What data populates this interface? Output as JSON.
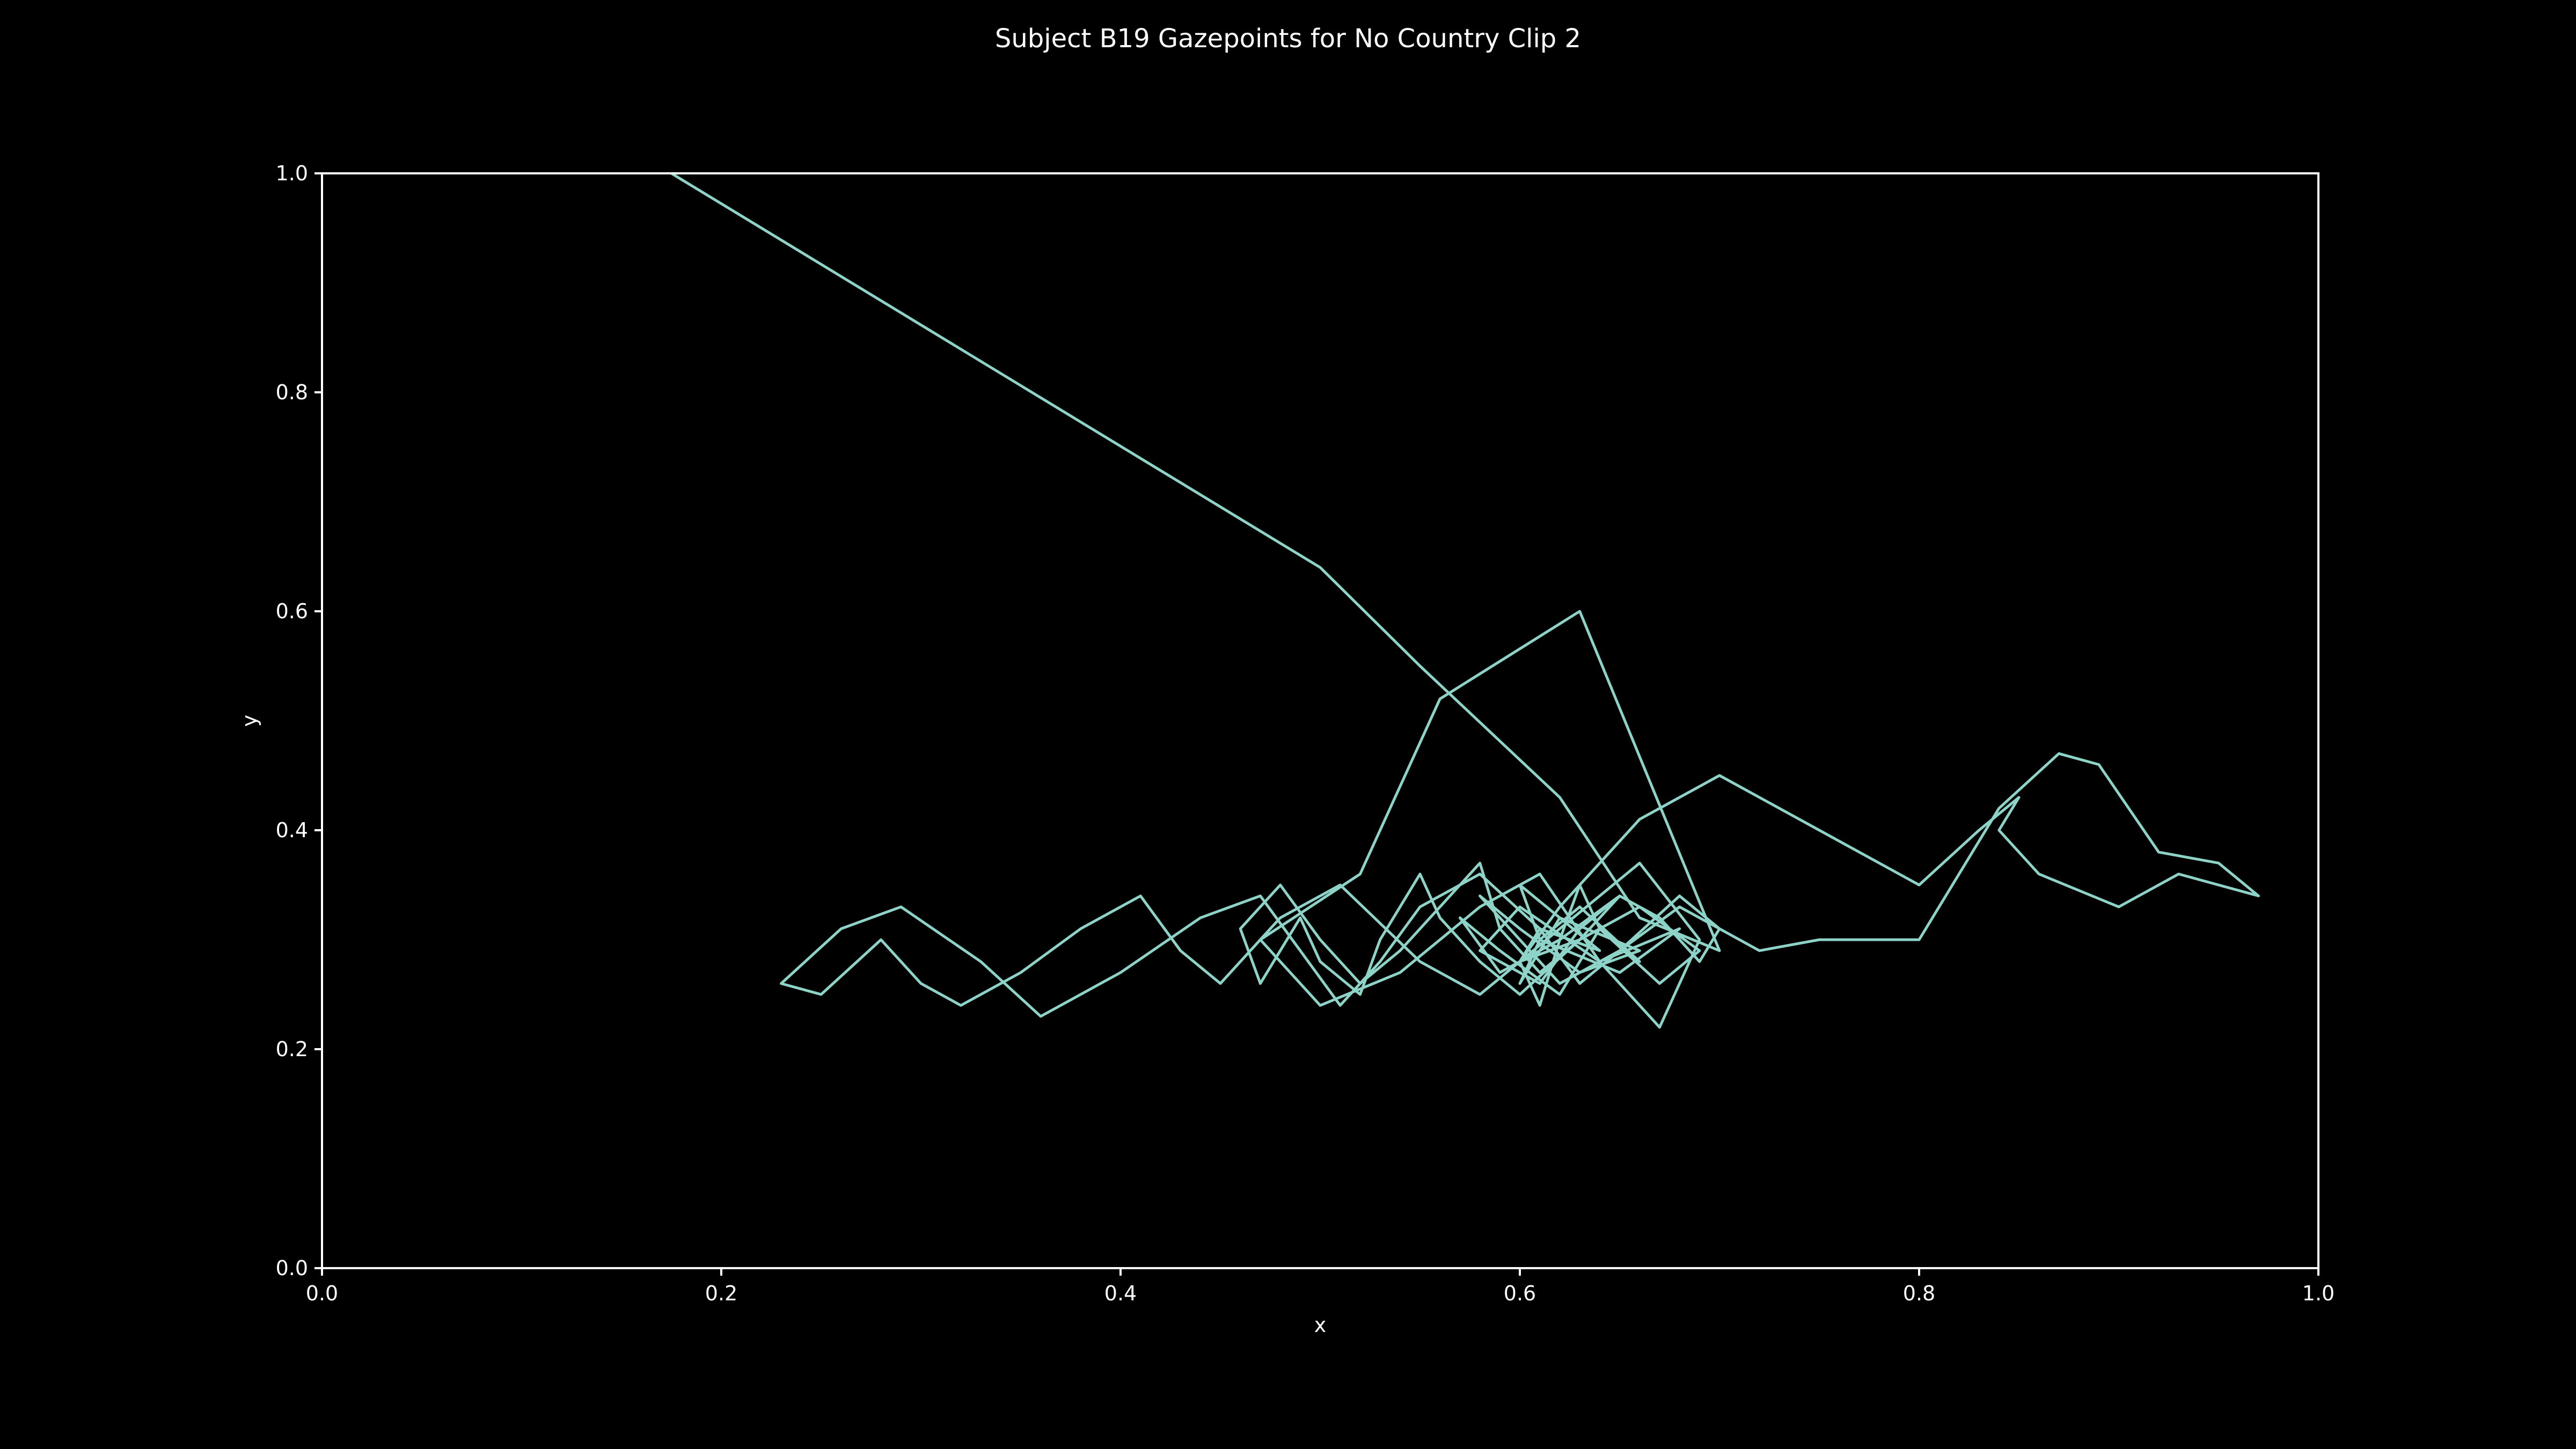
{
  "colors": {
    "background": "#000000",
    "axes": "#ffffff",
    "line": "#8dd3c7"
  },
  "chart_data": {
    "type": "line",
    "title": "Subject B19 Gazepoints for No Country Clip 2",
    "xlabel": "x",
    "ylabel": "y",
    "xlim": [
      0.0,
      1.0
    ],
    "ylim": [
      0.0,
      1.0
    ],
    "xticks": [
      "0.0",
      "0.2",
      "0.4",
      "0.6",
      "0.8",
      "1.0"
    ],
    "yticks": [
      "0.0",
      "0.2",
      "0.4",
      "0.6",
      "0.8",
      "1.0"
    ],
    "grid": false,
    "legend": "none",
    "series": [
      {
        "x": [
          0.175,
          0.5,
          0.55,
          0.62,
          0.66,
          0.7,
          0.63,
          0.56,
          0.52,
          0.47,
          0.5,
          0.54,
          0.58,
          0.61,
          0.64,
          0.67,
          0.69,
          0.66,
          0.62,
          0.58,
          0.55,
          0.51,
          0.48,
          0.45,
          0.43,
          0.41,
          0.38,
          0.35,
          0.32,
          0.3,
          0.28,
          0.25,
          0.23,
          0.26,
          0.29,
          0.33,
          0.36,
          0.4,
          0.44,
          0.47,
          0.49,
          0.51,
          0.53,
          0.55,
          0.58,
          0.61,
          0.63,
          0.65,
          0.68,
          0.7,
          0.72,
          0.75,
          0.8,
          0.84,
          0.87,
          0.89,
          0.92,
          0.95,
          0.97,
          0.93,
          0.9,
          0.86,
          0.84,
          0.85,
          0.83,
          0.8,
          0.75,
          0.7,
          0.66,
          0.62,
          0.6,
          0.61,
          0.62,
          0.63,
          0.64,
          0.67,
          0.69,
          0.66,
          0.63,
          0.6,
          0.58,
          0.56,
          0.55,
          0.53,
          0.52,
          0.5,
          0.49,
          0.48,
          0.47,
          0.46,
          0.48,
          0.5,
          0.52,
          0.54,
          0.56,
          0.58,
          0.59,
          0.61,
          0.63,
          0.65,
          0.67,
          0.69,
          0.7,
          0.68,
          0.65,
          0.62,
          0.6,
          0.58,
          0.6,
          0.63,
          0.66,
          0.62,
          0.6,
          0.61,
          0.65,
          0.68,
          0.64,
          0.6,
          0.58,
          0.61,
          0.63,
          0.65,
          0.62,
          0.59,
          0.57,
          0.59,
          0.62,
          0.64,
          0.66,
          0.63,
          0.61,
          0.6,
          0.62,
          0.64,
          0.61,
          0.6,
          0.63
        ],
        "y": [
          1.0,
          0.64,
          0.55,
          0.43,
          0.32,
          0.29,
          0.6,
          0.52,
          0.36,
          0.3,
          0.24,
          0.27,
          0.33,
          0.36,
          0.28,
          0.22,
          0.3,
          0.37,
          0.31,
          0.25,
          0.28,
          0.35,
          0.32,
          0.26,
          0.29,
          0.34,
          0.31,
          0.27,
          0.24,
          0.26,
          0.3,
          0.25,
          0.26,
          0.31,
          0.33,
          0.28,
          0.23,
          0.27,
          0.32,
          0.34,
          0.29,
          0.24,
          0.28,
          0.33,
          0.36,
          0.31,
          0.26,
          0.29,
          0.33,
          0.31,
          0.29,
          0.3,
          0.3,
          0.42,
          0.47,
          0.46,
          0.38,
          0.37,
          0.34,
          0.36,
          0.33,
          0.36,
          0.4,
          0.43,
          0.4,
          0.35,
          0.4,
          0.45,
          0.41,
          0.33,
          0.28,
          0.24,
          0.3,
          0.35,
          0.31,
          0.26,
          0.29,
          0.33,
          0.3,
          0.25,
          0.28,
          0.32,
          0.36,
          0.3,
          0.25,
          0.28,
          0.32,
          0.29,
          0.26,
          0.31,
          0.35,
          0.3,
          0.26,
          0.29,
          0.33,
          0.37,
          0.31,
          0.27,
          0.3,
          0.34,
          0.32,
          0.28,
          0.31,
          0.34,
          0.29,
          0.26,
          0.3,
          0.34,
          0.31,
          0.27,
          0.29,
          0.32,
          0.35,
          0.3,
          0.27,
          0.31,
          0.28,
          0.33,
          0.29,
          0.26,
          0.31,
          0.34,
          0.3,
          0.27,
          0.32,
          0.29,
          0.25,
          0.31,
          0.28,
          0.33,
          0.3,
          0.26,
          0.32,
          0.29,
          0.31,
          0.28,
          0.3
        ]
      }
    ]
  }
}
